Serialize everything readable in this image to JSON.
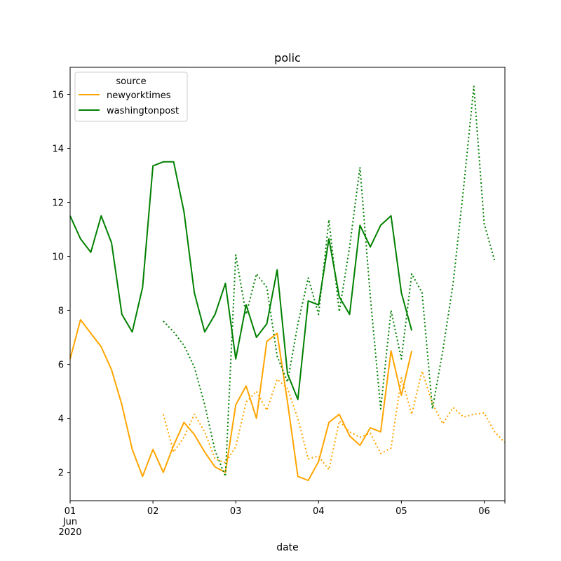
{
  "chart_data": {
    "type": "line",
    "title": "polic",
    "xlabel": "date",
    "ylabel": "",
    "xlim": [
      "2020-06-01T00:00",
      "2020-06-06T06:00"
    ],
    "ylim": [
      0.95,
      17.0
    ],
    "x_ticks": [
      {
        "at": "2020-06-01T00:00",
        "lines": [
          "01",
          "Jun",
          "2020"
        ]
      },
      {
        "at": "2020-06-02T00:00",
        "lines": [
          "02"
        ]
      },
      {
        "at": "2020-06-03T00:00",
        "lines": [
          "03"
        ]
      },
      {
        "at": "2020-06-04T00:00",
        "lines": [
          "04"
        ]
      },
      {
        "at": "2020-06-05T00:00",
        "lines": [
          "05"
        ]
      },
      {
        "at": "2020-06-06T00:00",
        "lines": [
          "06"
        ]
      }
    ],
    "y_ticks": [
      2,
      4,
      6,
      8,
      10,
      12,
      14,
      16
    ],
    "grid": false,
    "legend": {
      "title": "source",
      "placement": "upper-left"
    },
    "series": [
      {
        "name": "newyorktimes",
        "color": "#ffa500",
        "style": "solid",
        "points": [
          [
            "2020-06-01T00:00",
            6.2
          ],
          [
            "2020-06-01T03:00",
            7.65
          ],
          [
            "2020-06-01T06:00",
            7.15
          ],
          [
            "2020-06-01T09:00",
            6.65
          ],
          [
            "2020-06-01T12:00",
            5.8
          ],
          [
            "2020-06-01T15:00",
            4.5
          ],
          [
            "2020-06-01T18:00",
            2.85
          ],
          [
            "2020-06-01T21:00",
            1.85
          ],
          [
            "2020-06-02T00:00",
            2.85
          ],
          [
            "2020-06-02T03:00",
            2.0
          ],
          [
            "2020-06-02T06:00",
            3.0
          ],
          [
            "2020-06-02T09:00",
            3.85
          ],
          [
            "2020-06-02T12:00",
            3.4
          ],
          [
            "2020-06-02T15:00",
            2.75
          ],
          [
            "2020-06-02T18:00",
            2.2
          ],
          [
            "2020-06-02T21:00",
            2.0
          ],
          [
            "2020-06-03T00:00",
            4.5
          ],
          [
            "2020-06-03T03:00",
            5.2
          ],
          [
            "2020-06-03T06:00",
            4.0
          ],
          [
            "2020-06-03T09:00",
            6.85
          ],
          [
            "2020-06-03T12:00",
            7.15
          ],
          [
            "2020-06-03T15:00",
            4.6
          ],
          [
            "2020-06-03T18:00",
            1.85
          ],
          [
            "2020-06-03T21:00",
            1.7
          ],
          [
            "2020-06-04T00:00",
            2.4
          ],
          [
            "2020-06-04T03:00",
            3.85
          ],
          [
            "2020-06-04T06:00",
            4.15
          ],
          [
            "2020-06-04T09:00",
            3.35
          ],
          [
            "2020-06-04T12:00",
            3.0
          ],
          [
            "2020-06-04T15:00",
            3.65
          ],
          [
            "2020-06-04T18:00",
            3.5
          ],
          [
            "2020-06-04T21:00",
            6.5
          ],
          [
            "2020-06-05T00:00",
            4.85
          ],
          [
            "2020-06-05T03:00",
            6.5
          ]
        ]
      },
      {
        "name": "washingtonpost",
        "color": "#008000",
        "style": "solid",
        "points": [
          [
            "2020-06-01T00:00",
            11.5
          ],
          [
            "2020-06-01T03:00",
            10.65
          ],
          [
            "2020-06-01T06:00",
            10.15
          ],
          [
            "2020-06-01T09:00",
            11.5
          ],
          [
            "2020-06-01T12:00",
            10.5
          ],
          [
            "2020-06-01T15:00",
            7.85
          ],
          [
            "2020-06-01T18:00",
            7.2
          ],
          [
            "2020-06-01T21:00",
            8.85
          ],
          [
            "2020-06-02T00:00",
            13.35
          ],
          [
            "2020-06-02T03:00",
            13.5
          ],
          [
            "2020-06-02T06:00",
            13.5
          ],
          [
            "2020-06-02T09:00",
            11.65
          ],
          [
            "2020-06-02T12:00",
            8.65
          ],
          [
            "2020-06-02T15:00",
            7.2
          ],
          [
            "2020-06-02T18:00",
            7.85
          ],
          [
            "2020-06-02T21:00",
            9.0
          ],
          [
            "2020-06-03T00:00",
            6.2
          ],
          [
            "2020-06-03T03:00",
            8.2
          ],
          [
            "2020-06-03T06:00",
            7.0
          ],
          [
            "2020-06-03T09:00",
            7.5
          ],
          [
            "2020-06-03T12:00",
            9.5
          ],
          [
            "2020-06-03T15:00",
            5.65
          ],
          [
            "2020-06-03T18:00",
            4.7
          ],
          [
            "2020-06-03T21:00",
            8.35
          ],
          [
            "2020-06-04T00:00",
            8.2
          ],
          [
            "2020-06-04T03:00",
            10.65
          ],
          [
            "2020-06-04T06:00",
            8.5
          ],
          [
            "2020-06-04T09:00",
            7.85
          ],
          [
            "2020-06-04T12:00",
            11.15
          ],
          [
            "2020-06-04T15:00",
            10.35
          ],
          [
            "2020-06-04T18:00",
            11.15
          ],
          [
            "2020-06-04T21:00",
            11.5
          ],
          [
            "2020-06-05T00:00",
            8.65
          ],
          [
            "2020-06-05T03:00",
            7.25
          ]
        ]
      },
      {
        "color": "#ffa500",
        "style": "dotted",
        "points": [
          [
            "2020-06-02T03:00",
            4.15
          ],
          [
            "2020-06-02T06:00",
            2.75
          ],
          [
            "2020-06-02T09:00",
            3.3
          ],
          [
            "2020-06-02T12:00",
            4.15
          ],
          [
            "2020-06-02T15:00",
            3.5
          ],
          [
            "2020-06-02T18:00",
            2.5
          ],
          [
            "2020-06-02T21:00",
            2.35
          ],
          [
            "2020-06-03T00:00",
            2.95
          ],
          [
            "2020-06-03T03:00",
            4.6
          ],
          [
            "2020-06-03T06:00",
            5.0
          ],
          [
            "2020-06-03T09:00",
            4.3
          ],
          [
            "2020-06-03T12:00",
            5.45
          ],
          [
            "2020-06-03T15:00",
            5.1
          ],
          [
            "2020-06-03T18:00",
            4.0
          ],
          [
            "2020-06-03T21:00",
            2.5
          ],
          [
            "2020-06-04T00:00",
            2.6
          ],
          [
            "2020-06-04T03:00",
            2.1
          ],
          [
            "2020-06-04T06:00",
            3.9
          ],
          [
            "2020-06-04T09:00",
            3.5
          ],
          [
            "2020-06-04T12:00",
            3.3
          ],
          [
            "2020-06-04T15:00",
            3.45
          ],
          [
            "2020-06-04T18:00",
            2.7
          ],
          [
            "2020-06-04T21:00",
            2.9
          ],
          [
            "2020-06-05T00:00",
            5.5
          ],
          [
            "2020-06-05T03:00",
            4.15
          ],
          [
            "2020-06-05T06:00",
            5.75
          ],
          [
            "2020-06-05T09:00",
            4.55
          ],
          [
            "2020-06-05T12:00",
            3.8
          ],
          [
            "2020-06-05T15:00",
            4.4
          ],
          [
            "2020-06-05T18:00",
            4.05
          ],
          [
            "2020-06-05T21:00",
            4.15
          ],
          [
            "2020-06-06T00:00",
            4.2
          ],
          [
            "2020-06-06T03:00",
            3.5
          ],
          [
            "2020-06-06T06:00",
            3.1
          ]
        ]
      },
      {
        "color": "#008000",
        "style": "dotted",
        "points": [
          [
            "2020-06-02T03:00",
            7.6
          ],
          [
            "2020-06-02T06:00",
            7.2
          ],
          [
            "2020-06-02T09:00",
            6.7
          ],
          [
            "2020-06-02T12:00",
            5.9
          ],
          [
            "2020-06-02T15:00",
            4.5
          ],
          [
            "2020-06-02T18:00",
            2.8
          ],
          [
            "2020-06-02T21:00",
            1.85
          ],
          [
            "2020-06-03T00:00",
            10.05
          ],
          [
            "2020-06-03T03:00",
            7.85
          ],
          [
            "2020-06-03T06:00",
            9.35
          ],
          [
            "2020-06-03T09:00",
            8.85
          ],
          [
            "2020-06-03T12:00",
            6.3
          ],
          [
            "2020-06-03T15:00",
            5.35
          ],
          [
            "2020-06-03T18:00",
            7.5
          ],
          [
            "2020-06-03T21:00",
            9.2
          ],
          [
            "2020-06-04T00:00",
            7.85
          ],
          [
            "2020-06-04T03:00",
            11.35
          ],
          [
            "2020-06-04T06:00",
            7.95
          ],
          [
            "2020-06-04T09:00",
            10.35
          ],
          [
            "2020-06-04T12:00",
            13.3
          ],
          [
            "2020-06-04T15:00",
            8.5
          ],
          [
            "2020-06-04T18:00",
            4.35
          ],
          [
            "2020-06-04T21:00",
            8.0
          ],
          [
            "2020-06-05T00:00",
            6.2
          ],
          [
            "2020-06-05T03:00",
            9.35
          ],
          [
            "2020-06-05T06:00",
            8.65
          ],
          [
            "2020-06-05T09:00",
            4.35
          ],
          [
            "2020-06-05T12:00",
            6.5
          ],
          [
            "2020-06-05T15:00",
            9.0
          ],
          [
            "2020-06-05T18:00",
            12.5
          ],
          [
            "2020-06-05T21:00",
            16.3
          ],
          [
            "2020-06-06T00:00",
            11.2
          ],
          [
            "2020-06-06T03:00",
            9.85
          ]
        ]
      }
    ]
  }
}
